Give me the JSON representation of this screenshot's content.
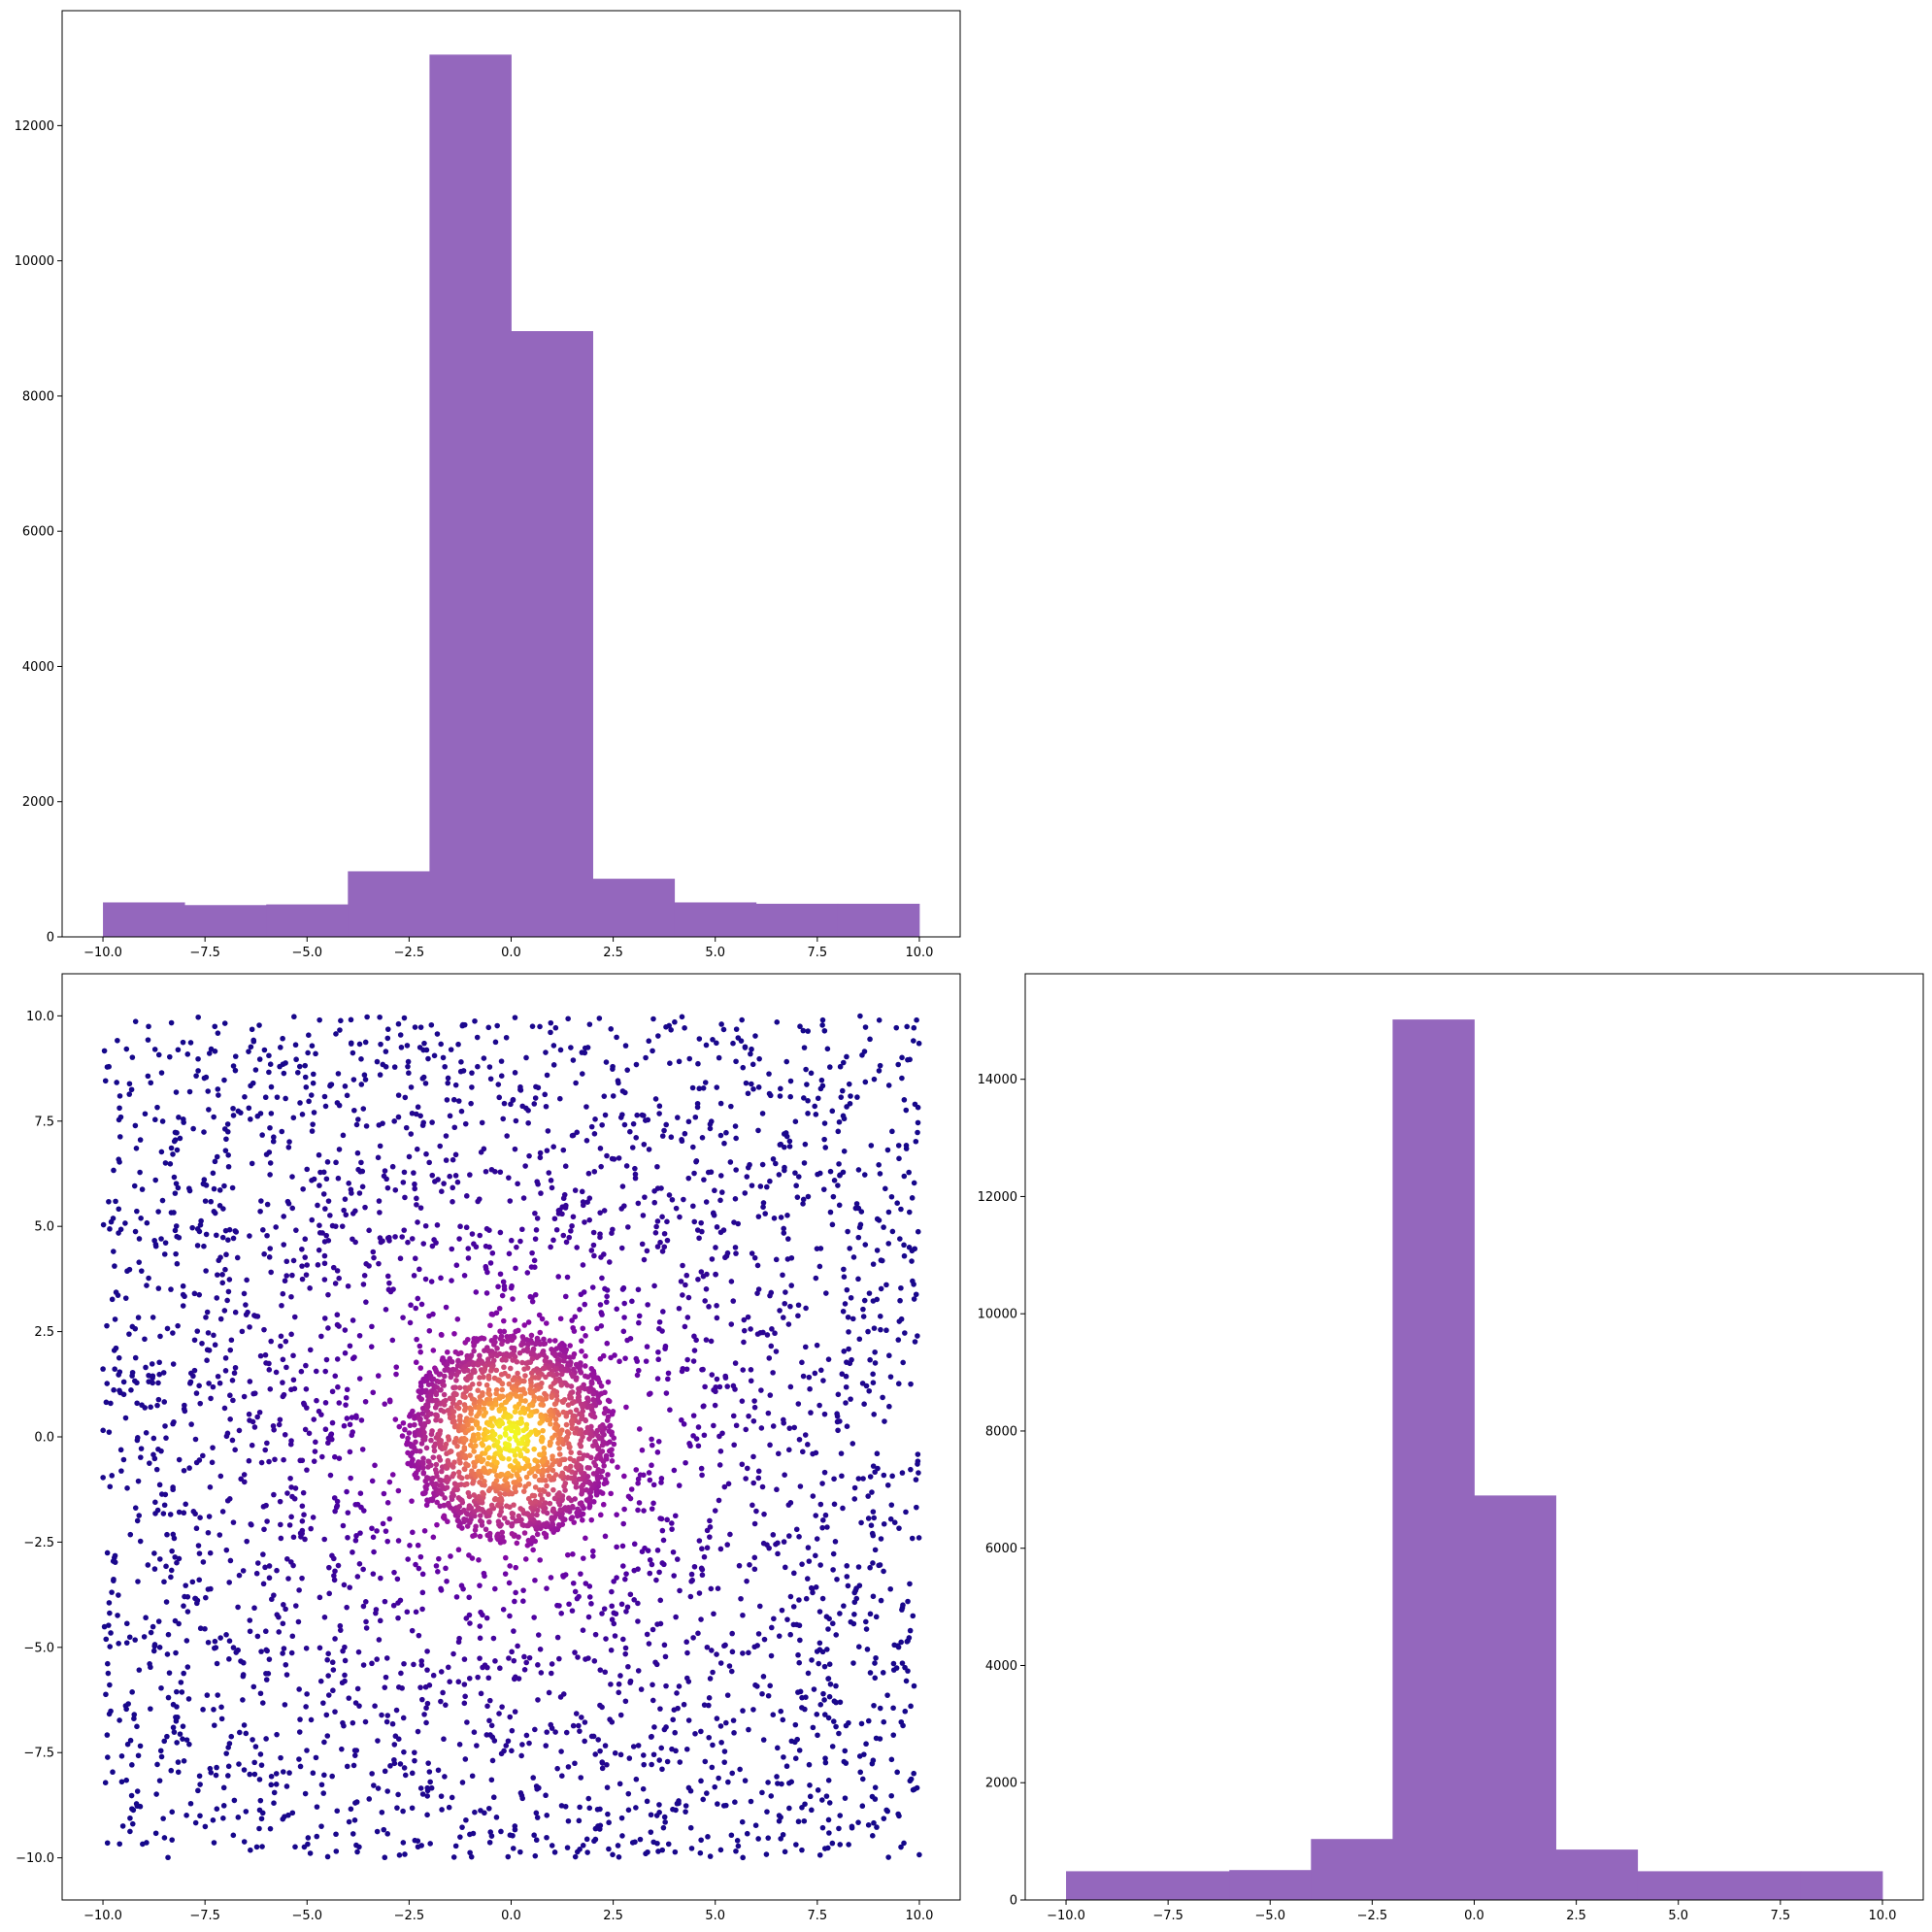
{
  "chart_data": [
    {
      "id": "hist_x",
      "type": "bar",
      "subtype": "histogram",
      "position": "top-left",
      "bin_edges": [
        -10,
        -8,
        -6,
        -4,
        -2,
        0,
        2,
        4,
        6,
        8,
        10
      ],
      "values": [
        510,
        470,
        480,
        970,
        13050,
        8960,
        860,
        510,
        490,
        490
      ],
      "color": "#9467bd",
      "xlim": [
        -11,
        11
      ],
      "ylim": [
        0,
        13700
      ],
      "xticks": [
        -10.0,
        -7.5,
        -5.0,
        -2.5,
        0.0,
        2.5,
        5.0,
        7.5,
        10.0
      ],
      "xtick_labels": [
        "−10.0",
        "−7.5",
        "−5.0",
        "−2.5",
        "0.0",
        "2.5",
        "5.0",
        "7.5",
        "10.0"
      ],
      "yticks": [
        0,
        2000,
        4000,
        6000,
        8000,
        10000,
        12000
      ],
      "ytick_labels": [
        "0",
        "2000",
        "4000",
        "6000",
        "8000",
        "10000",
        "12000"
      ],
      "title": "",
      "xlabel": "",
      "ylabel": "",
      "grid": false,
      "legend": "none"
    },
    {
      "id": "scatter_xy",
      "type": "scatter",
      "position": "bottom-left",
      "description_of_data": "uniform background points over [-10,10]x[-10,10] plus a dense disk of radius about 2.5 centered at (0,0); marker color follows the plasma colormap by closeness to the center",
      "uniform_points": {
        "count": 3400,
        "x_range": [
          -10,
          10
        ],
        "y_range": [
          -10,
          10
        ]
      },
      "central_cluster": {
        "center": [
          0,
          0
        ],
        "radius": 2.55,
        "count": 1500
      },
      "colormap": "plasma",
      "colormap_stops": [
        "#0d0887",
        "#5302a3",
        "#8b0aa5",
        "#b83289",
        "#db5c68",
        "#f48849",
        "#febd2a",
        "#f0f921"
      ],
      "xlim": [
        -11,
        11
      ],
      "ylim": [
        -11,
        11
      ],
      "xticks": [
        -10.0,
        -7.5,
        -5.0,
        -2.5,
        0.0,
        2.5,
        5.0,
        7.5,
        10.0
      ],
      "xtick_labels": [
        "−10.0",
        "−7.5",
        "−5.0",
        "−2.5",
        "0.0",
        "2.5",
        "5.0",
        "7.5",
        "10.0"
      ],
      "yticks": [
        -10.0,
        -7.5,
        -5.0,
        -2.5,
        0.0,
        2.5,
        5.0,
        7.5,
        10.0
      ],
      "ytick_labels": [
        "−10.0",
        "−7.5",
        "−5.0",
        "−2.5",
        "0.0",
        "2.5",
        "5.0",
        "7.5",
        "10.0"
      ],
      "title": "",
      "xlabel": "",
      "ylabel": "",
      "grid": false,
      "legend": "none"
    },
    {
      "id": "hist_y",
      "type": "bar",
      "subtype": "histogram",
      "position": "bottom-right",
      "bin_edges": [
        -10,
        -8,
        -6,
        -4,
        -2,
        0,
        2,
        4,
        6,
        8,
        10
      ],
      "values": [
        490,
        490,
        510,
        1040,
        15020,
        6900,
        860,
        490,
        490,
        490
      ],
      "color": "#9467bd",
      "xlim": [
        -11,
        11
      ],
      "ylim": [
        0,
        15800
      ],
      "xticks": [
        -10.0,
        -7.5,
        -5.0,
        -2.5,
        0.0,
        2.5,
        5.0,
        7.5,
        10.0
      ],
      "xtick_labels": [
        "−10.0",
        "−7.5",
        "−5.0",
        "−2.5",
        "0.0",
        "2.5",
        "5.0",
        "7.5",
        "10.0"
      ],
      "yticks": [
        0,
        2000,
        4000,
        6000,
        8000,
        10000,
        12000,
        14000
      ],
      "ytick_labels": [
        "0",
        "2000",
        "4000",
        "6000",
        "8000",
        "10000",
        "12000",
        "14000"
      ],
      "title": "",
      "xlabel": "",
      "ylabel": "",
      "grid": false,
      "legend": "none"
    }
  ]
}
